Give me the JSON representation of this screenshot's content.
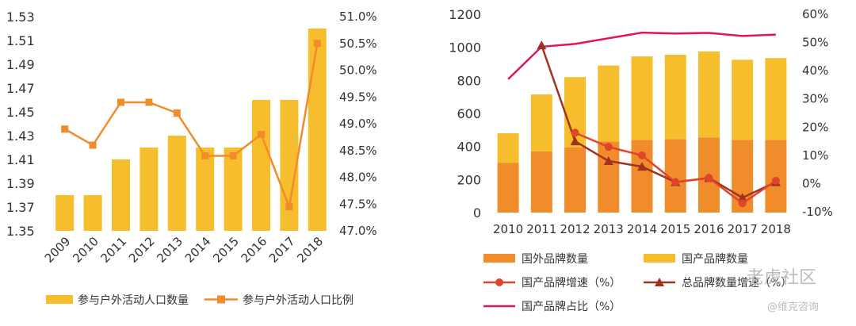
{
  "chart_data": [
    {
      "type": "bar+line",
      "categories": [
        "2009",
        "2010",
        "2011",
        "2012",
        "2013",
        "2014",
        "2015",
        "2016",
        "2017",
        "2018"
      ],
      "y_left": {
        "range": [
          1.35,
          1.53
        ],
        "ticks": [
          "1.35",
          "1.37",
          "1.39",
          "1.41",
          "1.43",
          "1.45",
          "1.47",
          "1.49",
          "1.51",
          "1.53"
        ]
      },
      "y_right": {
        "range": [
          47.0,
          51.0
        ],
        "ticks": [
          "47.0%",
          "47.5%",
          "48.0%",
          "48.5%",
          "49.0%",
          "49.5%",
          "50.0%",
          "50.5%",
          "51.0%"
        ]
      },
      "series": [
        {
          "name": "参与户外活动人口数量",
          "type": "bar",
          "axis": "left",
          "color": "#F6BE2C",
          "values": [
            1.38,
            1.38,
            1.41,
            1.42,
            1.43,
            1.42,
            1.42,
            1.46,
            1.46,
            1.52
          ]
        },
        {
          "name": "参与户外活动人口比例",
          "type": "line",
          "axis": "right",
          "color": "#F08C2A",
          "values": [
            48.9,
            48.6,
            49.4,
            49.4,
            49.2,
            48.4,
            48.4,
            48.8,
            47.45,
            50.5
          ]
        }
      ],
      "legend": "bottom"
    },
    {
      "type": "stacked-bar+line",
      "categories": [
        "2010",
        "2011",
        "2012",
        "2013",
        "2014",
        "2015",
        "2016",
        "2017",
        "2018"
      ],
      "y_left": {
        "range": [
          0,
          1200
        ],
        "ticks": [
          "0",
          "200",
          "400",
          "600",
          "800",
          "1000",
          "1200"
        ]
      },
      "y_right": {
        "range": [
          -10,
          60
        ],
        "ticks": [
          "-10%",
          "0%",
          "10%",
          "20%",
          "30%",
          "40%",
          "50%",
          "60%"
        ]
      },
      "series": [
        {
          "name": "国外品牌数量",
          "type": "bar",
          "stack": "total",
          "axis": "left",
          "color": "#F08C2A",
          "values": [
            300,
            370,
            395,
            430,
            440,
            445,
            455,
            440,
            440
          ]
        },
        {
          "name": "国产品牌数量",
          "type": "bar",
          "stack": "total",
          "axis": "left",
          "color": "#F6BE2C",
          "values": [
            180,
            345,
            425,
            460,
            505,
            510,
            520,
            485,
            495
          ]
        },
        {
          "name": "国产品牌增速（%）",
          "type": "line",
          "axis": "right",
          "color": "#E0452A",
          "marker": "circle",
          "values": [
            null,
            null,
            18,
            13,
            10,
            0.5,
            2,
            -7,
            1
          ]
        },
        {
          "name": "总品牌数量增速（%）",
          "type": "line",
          "axis": "right",
          "color": "#A0331E",
          "marker": "triangle",
          "values": [
            null,
            49,
            15,
            8,
            6,
            0.5,
            2,
            -5,
            0.5
          ]
        },
        {
          "name": "国产品牌占比（%）",
          "type": "line",
          "axis": "right",
          "color": "#E0155E",
          "marker": "none",
          "values": [
            37,
            48.5,
            49.5,
            51.5,
            53.5,
            53.2,
            53.4,
            52.3,
            52.8
          ]
        }
      ],
      "legend": "bottom"
    }
  ],
  "watermark": {
    "text1": "老虎社区",
    "text2": "@维克咨询"
  }
}
